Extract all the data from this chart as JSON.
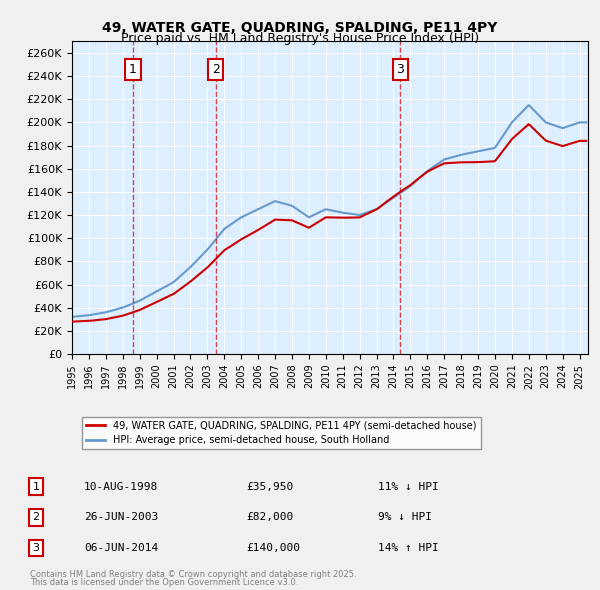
{
  "title1": "49, WATER GATE, QUADRING, SPALDING, PE11 4PY",
  "title2": "Price paid vs. HM Land Registry's House Price Index (HPI)",
  "legend_line1": "49, WATER GATE, QUADRING, SPALDING, PE11 4PY (semi-detached house)",
  "legend_line2": "HPI: Average price, semi-detached house, South Holland",
  "footer1": "Contains HM Land Registry data © Crown copyright and database right 2025.",
  "footer2": "This data is licensed under the Open Government Licence v3.0.",
  "sale_color": "#cc0000",
  "hpi_color": "#6699cc",
  "background_color": "#ddeeff",
  "grid_color": "#ffffff",
  "annotation_border_color": "#cc0000",
  "vline_color": "#cc0000",
  "ylim": [
    0,
    270000
  ],
  "ytick_step": 20000,
  "xlim_start": 1995.0,
  "xlim_end": 2025.5,
  "sales": [
    {
      "year": 1998.6,
      "price": 35950,
      "label": "1"
    },
    {
      "year": 2003.5,
      "price": 82000,
      "label": "2"
    },
    {
      "year": 2014.4,
      "price": 140000,
      "label": "3"
    }
  ],
  "annotations": [
    {
      "label": "1",
      "date": "10-AUG-1998",
      "price": "£35,950",
      "note": "11% ↓ HPI"
    },
    {
      "label": "2",
      "date": "26-JUN-2003",
      "price": "£82,000",
      "note": "9% ↓ HPI"
    },
    {
      "label": "3",
      "date": "06-JUN-2014",
      "price": "£140,000",
      "note": "14% ↑ HPI"
    }
  ]
}
